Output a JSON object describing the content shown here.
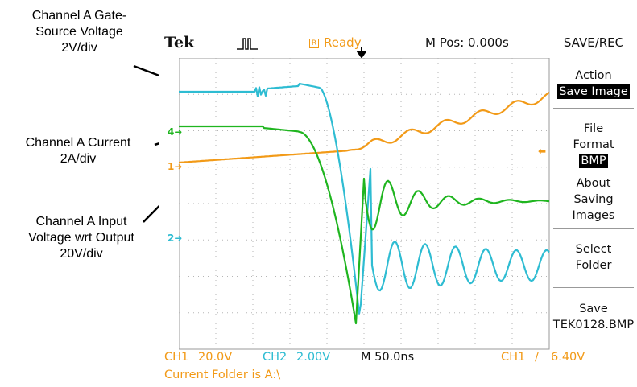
{
  "annotations": {
    "gate": [
      "Channel A Gate-",
      "Source Voltage",
      "2V/div"
    ],
    "current": [
      "Channel A Current",
      "2A/div"
    ],
    "input": [
      "Channel A Input",
      "Voltage wrt Output",
      "20V/div"
    ]
  },
  "scope": {
    "brand": "Tek",
    "status_box": "R",
    "status": "Ready",
    "mpos": "M Pos: 0.000s",
    "menu_title": "SAVE/REC",
    "menu": {
      "action_label": "Action",
      "action_value": "Save Image",
      "file_format_label_1": "File",
      "file_format_label_2": "Format",
      "file_format_value": "BMP",
      "about_1": "About",
      "about_2": "Saving",
      "about_3": "Images",
      "select_1": "Select",
      "select_2": "Folder",
      "save_1": "Save",
      "save_2": "TEK0128.BMP"
    },
    "bottom": {
      "ch1": "CH1",
      "ch1_scale": "20.0V",
      "ch2": "CH2",
      "ch2_scale": "2.00V",
      "timebase": "M 50.0ns",
      "trig_ch": "CH1",
      "trig_slope": "/",
      "trig_level": "6.40V",
      "folder": "Current Folder is A:\\"
    },
    "markers": {
      "ch1": "1",
      "ch2": "2",
      "ch4": "4"
    },
    "colors": {
      "ch1": "#f29a17",
      "ch2": "#2ebcd2",
      "ch4": "#1fb51f",
      "grid": "#9a9a9a"
    }
  }
}
